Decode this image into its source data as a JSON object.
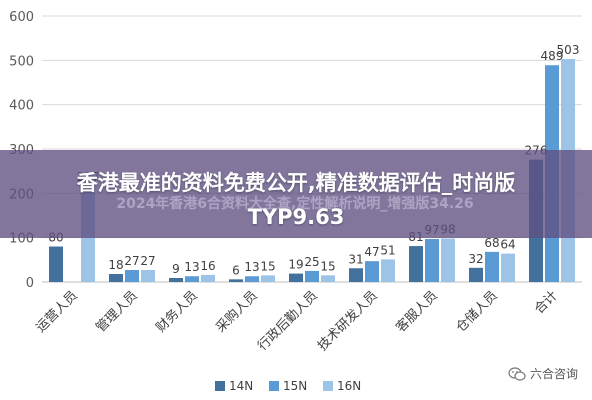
{
  "chart_data": {
    "type": "bar",
    "categories": [
      "运营人员",
      "管理人员",
      "财务人员",
      "采购人员",
      "行政后勤人员",
      "技术研发人员",
      "客服人员",
      "仓储人员",
      "合计"
    ],
    "series": [
      {
        "name": "14N",
        "color": "#41719C",
        "values": [
          80,
          18,
          9,
          6,
          19,
          31,
          81,
          32,
          276
        ]
      },
      {
        "name": "15N",
        "color": "#5B9BD5",
        "values": [
          null,
          27,
          13,
          13,
          25,
          47,
          97,
          68,
          489
        ]
      },
      {
        "name": "16N",
        "color": "#9DC3E6",
        "values": [
          217,
          27,
          16,
          15,
          15,
          51,
          98,
          64,
          503
        ]
      }
    ],
    "yticks": [
      0,
      100,
      200,
      300,
      400,
      500,
      600
    ],
    "ylim": [
      0,
      600
    ],
    "grid": true,
    "legend_position": "bottom"
  },
  "overlay": {
    "headline_line1": "香港最准的资料免费公开,精准数据评估_时尚版",
    "headline_line2": "TYP9.63",
    "watermark_text": "2024年香港6合资料大全查,定性解析说明_增强版34.26"
  },
  "brand": {
    "name": "六合咨询",
    "logo_icon": "wechat-logo-icon"
  }
}
